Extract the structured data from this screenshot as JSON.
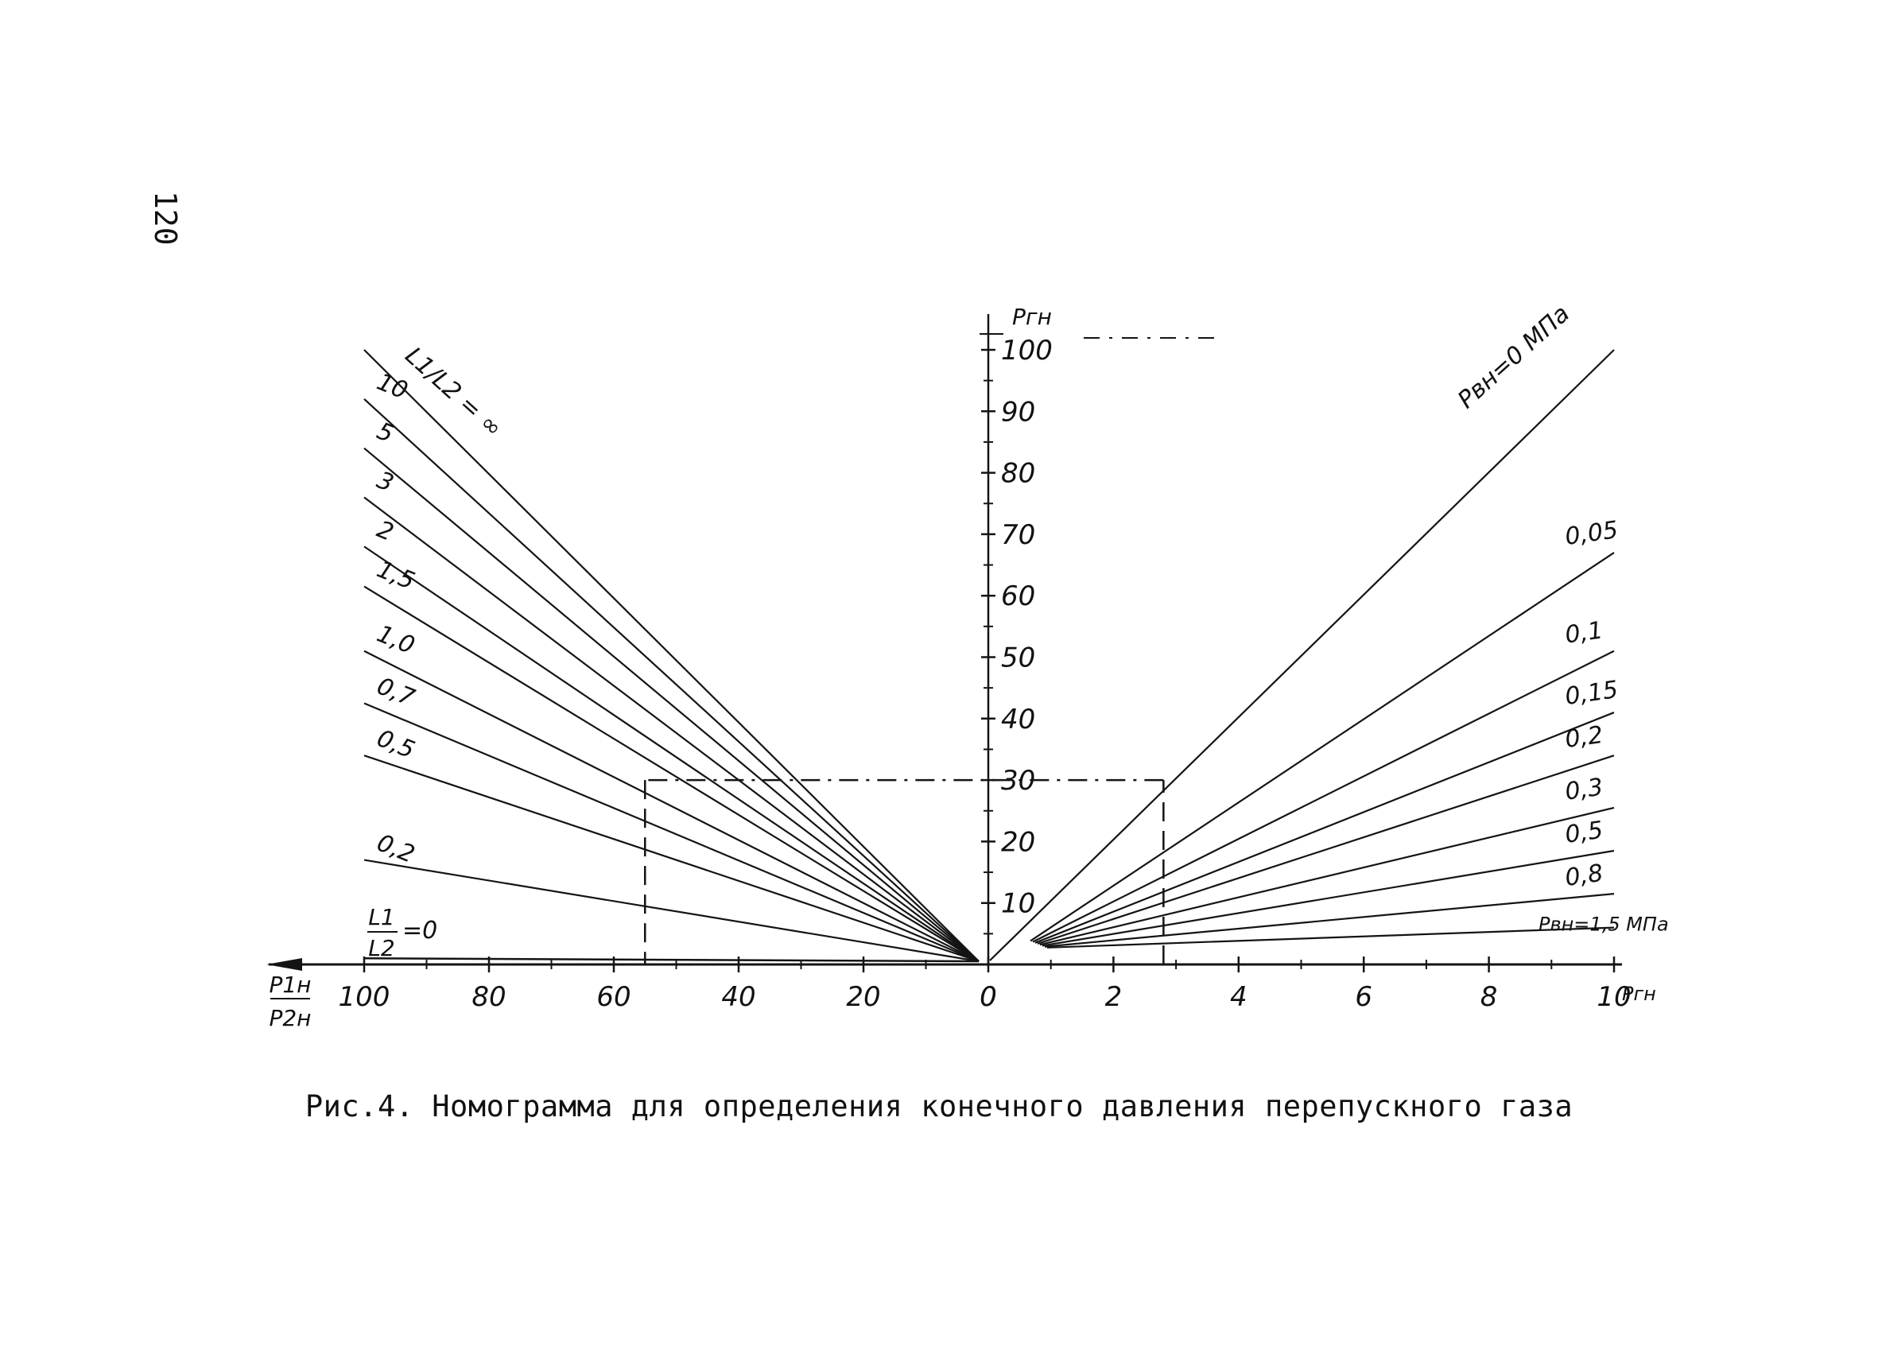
{
  "page_number": "120",
  "caption": "Рис.4. Номограмма для определения конечного давления перепускного газа",
  "chart_data": {
    "type": "line",
    "title": "",
    "left_x_axis": {
      "label_num": "P1н",
      "label_den": "P2н",
      "range": [
        0,
        100
      ],
      "direction": "right-to-left",
      "ticks": [
        "100",
        "80",
        "60",
        "40",
        "20",
        "0"
      ]
    },
    "right_x_axis": {
      "label": "Pгн",
      "range": [
        0,
        10
      ],
      "ticks": [
        "2",
        "4",
        "6",
        "8",
        "10"
      ]
    },
    "y_axis": {
      "label": "Pгн",
      "range": [
        0,
        100
      ],
      "ticks": [
        "10",
        "20",
        "30",
        "40",
        "50",
        "60",
        "70",
        "80",
        "90",
        "100"
      ]
    },
    "left_family": {
      "parameter": "L1/L2",
      "label_top_text": "L1/L2 = ∞",
      "label_zero_num": "L1",
      "label_zero_den": "L2",
      "label_zero_value": "=0",
      "series": [
        {
          "name": "∞",
          "end_value": 100
        },
        {
          "name": "10",
          "end_value": 92
        },
        {
          "name": "5",
          "end_value": 84
        },
        {
          "name": "3",
          "end_value": 76
        },
        {
          "name": "2",
          "end_value": 68
        },
        {
          "name": "1,5",
          "end_value": 61.5
        },
        {
          "name": "1,0",
          "end_value": 51
        },
        {
          "name": "0,7",
          "end_value": 42.5
        },
        {
          "name": "0,5",
          "end_value": 34
        },
        {
          "name": "0,2",
          "end_value": 17
        },
        {
          "name": "=0",
          "end_value": 1
        }
      ]
    },
    "right_family": {
      "parameter": "Pвн",
      "series": [
        {
          "name": "Pвн=0 МПа",
          "end_value": 100
        },
        {
          "name": "0,05",
          "end_value": 67
        },
        {
          "name": "0,1",
          "end_value": 51
        },
        {
          "name": "0,15",
          "end_value": 41
        },
        {
          "name": "0,2",
          "end_value": 34
        },
        {
          "name": "0,3",
          "end_value": 25.5
        },
        {
          "name": "0,5",
          "end_value": 18.5
        },
        {
          "name": "0,8",
          "end_value": 11.5
        },
        {
          "name": "Pвн=1,5 МПа",
          "end_value": 6
        }
      ]
    },
    "example_path": {
      "y_value": 30,
      "right_x_value": 2.8,
      "left_x_value": 55
    },
    "legend": "none",
    "grid": false
  }
}
